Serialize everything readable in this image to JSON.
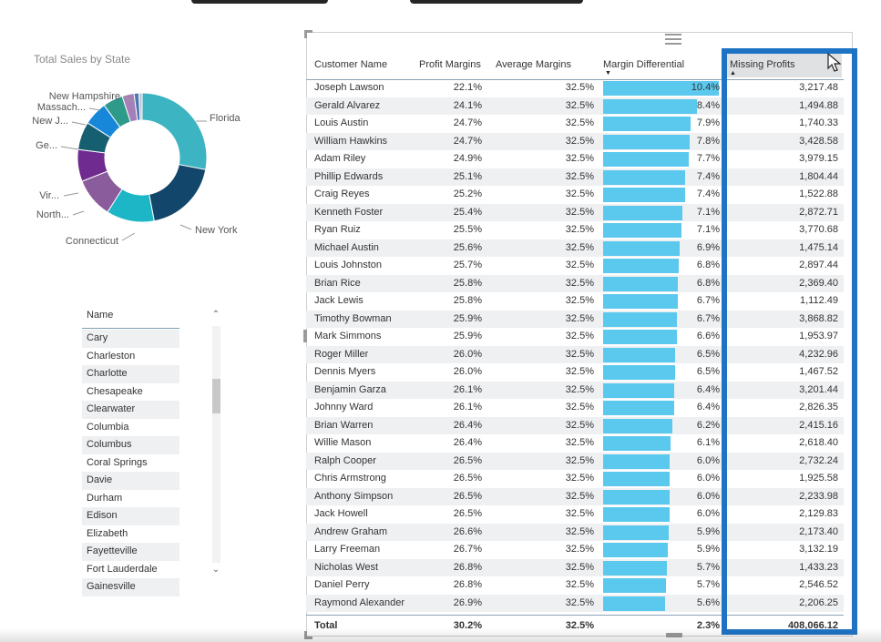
{
  "donut": {
    "title": "Total Sales by State",
    "slices": [
      {
        "label": "Florida",
        "value": 28,
        "color": "#3cb4c1"
      },
      {
        "label": "New York",
        "value": 19,
        "color": "#12466b"
      },
      {
        "label": "Connecticut",
        "value": 12,
        "color": "#1cb6c6"
      },
      {
        "label": "North...",
        "value": 10,
        "color": "#8b5c9b"
      },
      {
        "label": "Vir...",
        "value": 8,
        "color": "#6f2b8f"
      },
      {
        "label": "Ge...",
        "value": 7,
        "color": "#165f70"
      },
      {
        "label": "New J...",
        "value": 6,
        "color": "#1787d9"
      },
      {
        "label": "Massach...",
        "value": 5,
        "color": "#2e9a8a"
      },
      {
        "label": "New Hampshire",
        "value": 3,
        "color": "#a67fb8"
      },
      {
        "label": "",
        "value": 1.2,
        "color": "#4a78b0"
      },
      {
        "label": "",
        "value": 0.8,
        "color": "#c0c0d8"
      }
    ]
  },
  "slicer": {
    "header": "Name",
    "items": [
      "Cary",
      "Charleston",
      "Charlotte",
      "Chesapeake",
      "Clearwater",
      "Columbia",
      "Columbus",
      "Coral Springs",
      "Davie",
      "Durham",
      "Edison",
      "Elizabeth",
      "Fayetteville",
      "Fort Lauderdale",
      "Gainesville"
    ],
    "scroll_up": "⌃",
    "scroll_down": "⌄"
  },
  "table": {
    "headers": {
      "name": "Customer Name",
      "profit": "Profit Margins",
      "avg": "Average Margins",
      "diff": "Margin Differential",
      "missing": "Missing Profits"
    },
    "accent": "#5bc8ee",
    "highlight_color": "#1f73c4",
    "rows": [
      {
        "name": "Joseph Lawson",
        "profit": "22.1%",
        "avg": "32.5%",
        "diff": "10.4%",
        "missing": "3,217.48",
        "bar": 10.4
      },
      {
        "name": "Gerald Alvarez",
        "profit": "24.1%",
        "avg": "32.5%",
        "diff": "8.4%",
        "missing": "1,494.88",
        "bar": 8.4
      },
      {
        "name": "Louis Austin",
        "profit": "24.7%",
        "avg": "32.5%",
        "diff": "7.9%",
        "missing": "1,740.33",
        "bar": 7.9
      },
      {
        "name": "William Hawkins",
        "profit": "24.7%",
        "avg": "32.5%",
        "diff": "7.8%",
        "missing": "3,428.58",
        "bar": 7.8
      },
      {
        "name": "Adam Riley",
        "profit": "24.9%",
        "avg": "32.5%",
        "diff": "7.7%",
        "missing": "3,979.15",
        "bar": 7.7
      },
      {
        "name": "Phillip Edwards",
        "profit": "25.1%",
        "avg": "32.5%",
        "diff": "7.4%",
        "missing": "1,804.44",
        "bar": 7.4
      },
      {
        "name": "Craig Reyes",
        "profit": "25.2%",
        "avg": "32.5%",
        "diff": "7.4%",
        "missing": "1,522.88",
        "bar": 7.35
      },
      {
        "name": "Kenneth Foster",
        "profit": "25.4%",
        "avg": "32.5%",
        "diff": "7.1%",
        "missing": "2,872.71",
        "bar": 7.1
      },
      {
        "name": "Ryan Ruiz",
        "profit": "25.5%",
        "avg": "32.5%",
        "diff": "7.1%",
        "missing": "3,770.68",
        "bar": 7.05
      },
      {
        "name": "Michael Austin",
        "profit": "25.6%",
        "avg": "32.5%",
        "diff": "6.9%",
        "missing": "1,475.14",
        "bar": 6.9
      },
      {
        "name": "Louis Johnston",
        "profit": "25.7%",
        "avg": "32.5%",
        "diff": "6.8%",
        "missing": "2,897.44",
        "bar": 6.8
      },
      {
        "name": "Brian Rice",
        "profit": "25.8%",
        "avg": "32.5%",
        "diff": "6.8%",
        "missing": "2,369.40",
        "bar": 6.75
      },
      {
        "name": "Jack Lewis",
        "profit": "25.8%",
        "avg": "32.5%",
        "diff": "6.7%",
        "missing": "1,112.49",
        "bar": 6.7
      },
      {
        "name": "Timothy Bowman",
        "profit": "25.9%",
        "avg": "32.5%",
        "diff": "6.7%",
        "missing": "3,868.82",
        "bar": 6.65
      },
      {
        "name": "Mark Simmons",
        "profit": "25.9%",
        "avg": "32.5%",
        "diff": "6.6%",
        "missing": "1,953.97",
        "bar": 6.6
      },
      {
        "name": "Roger Miller",
        "profit": "26.0%",
        "avg": "32.5%",
        "diff": "6.5%",
        "missing": "4,232.96",
        "bar": 6.5
      },
      {
        "name": "Dennis Myers",
        "profit": "26.0%",
        "avg": "32.5%",
        "diff": "6.5%",
        "missing": "1,467.52",
        "bar": 6.45
      },
      {
        "name": "Benjamin Garza",
        "profit": "26.1%",
        "avg": "32.5%",
        "diff": "6.4%",
        "missing": "3,201.44",
        "bar": 6.4
      },
      {
        "name": "Johnny Ward",
        "profit": "26.1%",
        "avg": "32.5%",
        "diff": "6.4%",
        "missing": "2,826.35",
        "bar": 6.35
      },
      {
        "name": "Brian Warren",
        "profit": "26.4%",
        "avg": "32.5%",
        "diff": "6.2%",
        "missing": "2,415.16",
        "bar": 6.2
      },
      {
        "name": "Willie Mason",
        "profit": "26.4%",
        "avg": "32.5%",
        "diff": "6.1%",
        "missing": "2,618.40",
        "bar": 6.1
      },
      {
        "name": "Ralph Cooper",
        "profit": "26.5%",
        "avg": "32.5%",
        "diff": "6.0%",
        "missing": "2,732.24",
        "bar": 6.0
      },
      {
        "name": "Chris Armstrong",
        "profit": "26.5%",
        "avg": "32.5%",
        "diff": "6.0%",
        "missing": "1,925.58",
        "bar": 5.98
      },
      {
        "name": "Anthony Simpson",
        "profit": "26.5%",
        "avg": "32.5%",
        "diff": "6.0%",
        "missing": "2,233.98",
        "bar": 5.96
      },
      {
        "name": "Jack Howell",
        "profit": "26.5%",
        "avg": "32.5%",
        "diff": "6.0%",
        "missing": "2,129.83",
        "bar": 5.95
      },
      {
        "name": "Andrew Graham",
        "profit": "26.6%",
        "avg": "32.5%",
        "diff": "5.9%",
        "missing": "2,173.40",
        "bar": 5.9
      },
      {
        "name": "Larry Freeman",
        "profit": "26.7%",
        "avg": "32.5%",
        "diff": "5.9%",
        "missing": "3,132.19",
        "bar": 5.85
      },
      {
        "name": "Nicholas West",
        "profit": "26.8%",
        "avg": "32.5%",
        "diff": "5.7%",
        "missing": "1,433.23",
        "bar": 5.7
      },
      {
        "name": "Daniel Perry",
        "profit": "26.8%",
        "avg": "32.5%",
        "diff": "5.7%",
        "missing": "2,546.52",
        "bar": 5.68
      },
      {
        "name": "Raymond Alexander",
        "profit": "26.9%",
        "avg": "32.5%",
        "diff": "5.6%",
        "missing": "2,206.25",
        "bar": 5.6
      }
    ],
    "total": {
      "label": "Total",
      "profit": "30.2%",
      "avg": "32.5%",
      "diff": "2.3%",
      "missing": "408,066.12"
    }
  }
}
